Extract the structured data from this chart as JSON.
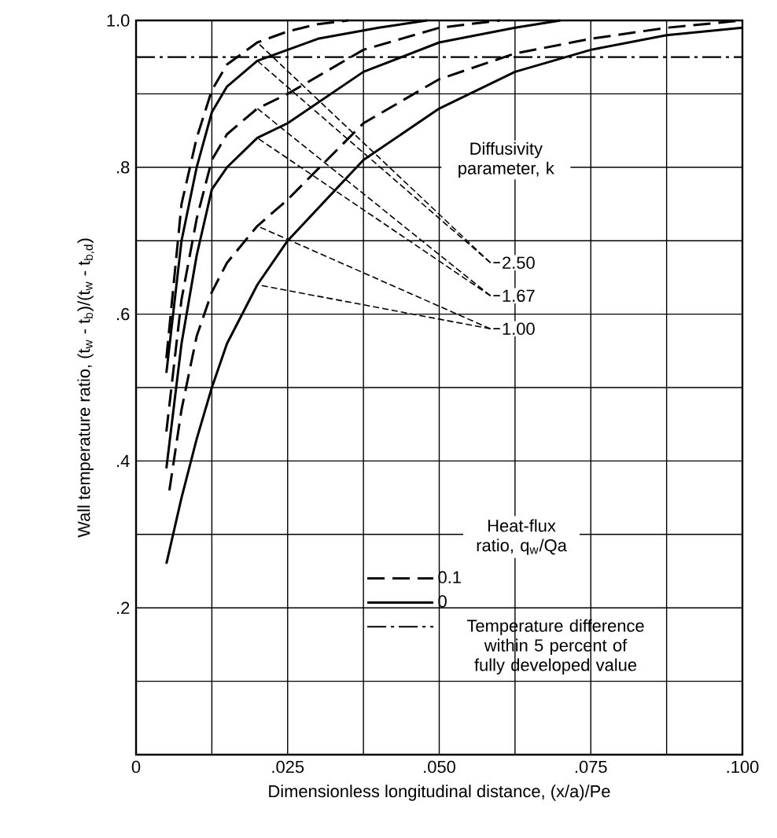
{
  "chart_data": {
    "type": "line",
    "xlabel": "Dimensionless longitudinal distance, (x/a)/Pe",
    "ylabel": "Wall temperature ratio, (t$_{w}$ - t$_{b}$)/(t$_{w}$ - t$_{b,d}$)",
    "legend_title": "Heat-flux ratio, q$_{w}$/Qa",
    "legend": "bottom right",
    "grid": true,
    "xlim": [
      0,
      0.1
    ],
    "ylim": [
      0,
      1.0
    ],
    "xticks": [
      {
        "value": 0,
        "label": "0"
      },
      {
        "value": 0.0125,
        "label": null
      },
      {
        "value": 0.025,
        "label": ".025"
      },
      {
        "value": 0.0375,
        "label": null
      },
      {
        "value": 0.05,
        "label": ".050"
      },
      {
        "value": 0.0625,
        "label": null
      },
      {
        "value": 0.075,
        "label": ".075"
      },
      {
        "value": 0.0875,
        "label": null
      },
      {
        "value": 0.1,
        "label": ".100"
      }
    ],
    "yticks": [
      {
        "value": 0,
        "label": null
      },
      {
        "value": 0.1,
        "label": null
      },
      {
        "value": 0.2,
        "label": ".2"
      },
      {
        "value": 0.3,
        "label": null
      },
      {
        "value": 0.4,
        "label": ".4"
      },
      {
        "value": 0.5,
        "label": null
      },
      {
        "value": 0.6,
        "label": ".6"
      },
      {
        "value": 0.7,
        "label": null
      },
      {
        "value": 0.8,
        "label": ".8"
      },
      {
        "value": 0.9,
        "label": null
      },
      {
        "value": 1.0,
        "label": "1.0"
      }
    ],
    "annotations": [
      "Diffusivity parameter, k",
      "2.50",
      "1.67",
      "1.00"
    ],
    "ref_lines": [
      {
        "axis": "y",
        "value": 0.95,
        "label": "Temperature difference within 5 percent of fully developed value",
        "line_style": "dashdot",
        "color": "#000000"
      }
    ],
    "series": [
      {
        "name": "0.1",
        "color": "#000000",
        "line_style": "dashed",
        "x": [
          0.005,
          0.0075,
          0.01,
          0.0125,
          0.015,
          0.02,
          0.025,
          0.03,
          0.035
        ],
        "values": [
          0.54,
          0.75,
          0.84,
          0.905,
          0.94,
          0.97,
          0.985,
          0.995,
          1.0
        ]
      },
      {
        "name": "0",
        "color": "#000000",
        "line_style": "solid",
        "x": [
          0.005,
          0.0075,
          0.01,
          0.0125,
          0.015,
          0.02,
          0.025,
          0.03,
          0.04,
          0.048
        ],
        "values": [
          0.52,
          0.7,
          0.8,
          0.875,
          0.91,
          0.945,
          0.96,
          0.975,
          0.99,
          1.0
        ]
      },
      {
        "color": "#000000",
        "line_style": "dashed",
        "x": [
          0.005,
          0.0075,
          0.01,
          0.0125,
          0.015,
          0.02,
          0.025,
          0.0375,
          0.05,
          0.06
        ],
        "values": [
          0.44,
          0.62,
          0.73,
          0.81,
          0.845,
          0.88,
          0.9,
          0.96,
          0.99,
          1.0
        ]
      },
      {
        "color": "#000000",
        "line_style": "solid",
        "x": [
          0.005,
          0.0075,
          0.01,
          0.0125,
          0.015,
          0.02,
          0.025,
          0.0375,
          0.05,
          0.0625,
          0.07
        ],
        "values": [
          0.39,
          0.56,
          0.68,
          0.77,
          0.8,
          0.84,
          0.86,
          0.93,
          0.97,
          0.99,
          1.0
        ]
      },
      {
        "color": "#000000",
        "line_style": "dashed",
        "x": [
          0.0055,
          0.0075,
          0.01,
          0.0125,
          0.015,
          0.02,
          0.025,
          0.0375,
          0.05,
          0.0625,
          0.075,
          0.0875,
          0.1
        ],
        "values": [
          0.36,
          0.47,
          0.57,
          0.63,
          0.67,
          0.72,
          0.756,
          0.86,
          0.92,
          0.955,
          0.975,
          0.99,
          1.0
        ]
      },
      {
        "color": "#000000",
        "line_style": "solid",
        "x": [
          0.005,
          0.0075,
          0.01,
          0.0125,
          0.015,
          0.02,
          0.025,
          0.0375,
          0.05,
          0.0625,
          0.075,
          0.0875,
          0.1
        ],
        "values": [
          0.26,
          0.35,
          0.43,
          0.5,
          0.56,
          0.64,
          0.7,
          0.81,
          0.88,
          0.93,
          0.96,
          0.98,
          0.99
        ]
      }
    ]
  }
}
